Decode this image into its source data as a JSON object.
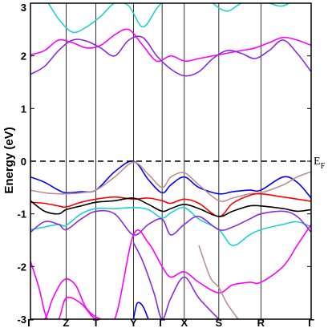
{
  "chart_data": {
    "type": "line",
    "ylabel": "Energy (eV)",
    "ylim": [
      -3,
      3
    ],
    "yticks": [
      -3,
      -2,
      -1,
      0,
      1,
      2,
      3
    ],
    "ytick_labels": [
      "-3",
      "-2",
      "-1",
      "0",
      "1",
      "2",
      "3"
    ],
    "kpath_labels": [
      "Γ",
      "Z",
      "T",
      "Y",
      "Γ",
      "X",
      "S",
      "R",
      "Γ"
    ],
    "kpath_positions": [
      0,
      0.127,
      0.233,
      0.367,
      0.469,
      0.548,
      0.671,
      0.821,
      1.0
    ],
    "fermi_level": 0,
    "fermi_label_main": "E",
    "fermi_label_sub": "F",
    "grid": false,
    "series": [
      {
        "color": "#ff00ff",
        "x": [
          0,
          0.05,
          0.1,
          0.15,
          0.2,
          0.25,
          0.3,
          0.35,
          0.4,
          0.45,
          0.5,
          0.55,
          0.6,
          0.65,
          0.7,
          0.75,
          0.8,
          0.85,
          0.9,
          0.95,
          1.0
        ],
        "y": [
          2.02,
          2.1,
          2.3,
          2.25,
          2.15,
          2.2,
          2.4,
          2.5,
          2.2,
          1.9,
          2.0,
          1.9,
          1.95,
          2.0,
          2.05,
          2.1,
          2.15,
          2.25,
          2.35,
          2.3,
          2.2
        ]
      },
      {
        "color": "#8a2be2",
        "x": [
          0,
          0.05,
          0.1,
          0.15,
          0.2,
          0.25,
          0.3,
          0.35,
          0.4,
          0.45,
          0.5,
          0.55,
          0.6,
          0.65,
          0.7,
          0.75,
          0.8,
          0.85,
          0.9,
          0.95,
          1.0
        ],
        "y": [
          1.65,
          1.8,
          2.1,
          2.3,
          2.28,
          2.15,
          2.0,
          2.3,
          2.35,
          2.0,
          1.75,
          1.62,
          1.7,
          1.95,
          2.1,
          2.05,
          1.95,
          2.1,
          2.3,
          2.05,
          1.7
        ]
      },
      {
        "color": "#20d0d0",
        "x": [
          0,
          0.05,
          0.1,
          0.15,
          0.2,
          0.25,
          0.3,
          0.35,
          0.4,
          0.45,
          0.5,
          0.55,
          0.6,
          0.65,
          0.7,
          0.75,
          0.8,
          0.85,
          0.9,
          0.95,
          1.0
        ],
        "y": [
          3.3,
          3.1,
          2.7,
          2.45,
          2.55,
          2.75,
          3.0,
          2.95,
          2.55,
          2.9,
          3.2,
          3.4,
          3.3,
          3.0,
          2.85,
          3.0,
          3.1,
          3.0,
          2.95,
          3.1,
          3.3
        ]
      },
      {
        "color": "#0000ff",
        "x": [
          0,
          0.05,
          0.1,
          0.127,
          0.18,
          0.233,
          0.3,
          0.367,
          0.42,
          0.469,
          0.5,
          0.548,
          0.6,
          0.671,
          0.72,
          0.78,
          0.821,
          0.9,
          0.95,
          1.0
        ],
        "y": [
          -0.3,
          -0.4,
          -0.55,
          -0.6,
          -0.58,
          -0.55,
          -0.2,
          0.0,
          -0.35,
          -0.6,
          -0.45,
          -0.3,
          -0.5,
          -0.62,
          -0.58,
          -0.55,
          -0.55,
          -0.3,
          -0.4,
          -0.7
        ]
      },
      {
        "color": "#bc8f8f",
        "x": [
          0,
          0.05,
          0.1,
          0.127,
          0.18,
          0.233,
          0.3,
          0.367,
          0.42,
          0.469,
          0.5,
          0.548,
          0.6,
          0.671,
          0.72,
          0.78,
          0.821,
          0.9,
          0.95,
          1.0
        ],
        "y": [
          -0.55,
          -0.6,
          -0.62,
          -0.62,
          -0.6,
          -0.55,
          -0.3,
          -0.02,
          -0.25,
          -0.5,
          -0.3,
          -0.22,
          -0.45,
          -0.75,
          -0.7,
          -0.62,
          -0.6,
          -0.45,
          -0.3,
          -0.2
        ]
      },
      {
        "color": "#ff0000",
        "x": [
          0,
          0.05,
          0.1,
          0.127,
          0.18,
          0.233,
          0.3,
          0.367,
          0.42,
          0.469,
          0.5,
          0.548,
          0.6,
          0.671,
          0.72,
          0.78,
          0.821,
          0.9,
          0.95,
          1.0
        ],
        "y": [
          -0.78,
          -0.8,
          -0.85,
          -0.87,
          -0.78,
          -0.72,
          -0.68,
          -0.72,
          -0.7,
          -0.75,
          -0.8,
          -0.72,
          -0.8,
          -1.05,
          -0.8,
          -0.65,
          -0.62,
          -0.68,
          -0.72,
          -0.76
        ]
      },
      {
        "color": "#000000",
        "x": [
          0,
          0.05,
          0.1,
          0.127,
          0.18,
          0.233,
          0.3,
          0.367,
          0.42,
          0.469,
          0.5,
          0.548,
          0.6,
          0.671,
          0.72,
          0.78,
          0.821,
          0.9,
          0.95,
          1.0
        ],
        "y": [
          -0.75,
          -0.95,
          -1.0,
          -0.92,
          -0.85,
          -0.78,
          -0.75,
          -0.7,
          -0.82,
          -0.95,
          -0.9,
          -0.82,
          -0.9,
          -1.05,
          -0.95,
          -0.85,
          -0.85,
          -0.9,
          -0.95,
          -0.92
        ]
      },
      {
        "color": "#20d0d0",
        "x": [
          0,
          0.05,
          0.1,
          0.127,
          0.18,
          0.233,
          0.3,
          0.367,
          0.42,
          0.469,
          0.5,
          0.548,
          0.6,
          0.671,
          0.72,
          0.78,
          0.821,
          0.9,
          0.95,
          1.0
        ],
        "y": [
          -1.3,
          -1.25,
          -1.2,
          -1.22,
          -1.0,
          -0.9,
          -0.9,
          -0.88,
          -0.92,
          -1.08,
          -0.98,
          -0.88,
          -1.1,
          -1.3,
          -1.6,
          -1.4,
          -1.3,
          -1.2,
          -1.15,
          -1.25
        ]
      },
      {
        "color": "#8a2be2",
        "x": [
          0,
          0.05,
          0.1,
          0.127,
          0.18,
          0.233,
          0.3,
          0.367,
          0.42,
          0.469,
          0.5,
          0.548,
          0.6,
          0.671,
          0.72,
          0.78,
          0.821,
          0.9,
          0.95,
          1.0
        ],
        "y": [
          -1.35,
          -1.15,
          -1.2,
          -1.3,
          -1.1,
          -0.95,
          -1.0,
          -1.4,
          -1.2,
          -1.1,
          -1.4,
          -1.2,
          -1.05,
          -1.3,
          -1.25,
          -1.1,
          -1.0,
          -0.95,
          -1.05,
          -1.35
        ]
      },
      {
        "color": "#ff00ff",
        "x": [
          0,
          0.03,
          0.06,
          0.1,
          0.127,
          0.18,
          0.233,
          0.3,
          0.367,
          0.42,
          0.469,
          0.5,
          0.548,
          0.6,
          0.671,
          0.72,
          0.78,
          0.821,
          0.9,
          0.95,
          1.0
        ],
        "y": [
          -1.9,
          -2.4,
          -3.0,
          -3.0,
          -2.6,
          -2.7,
          -3.0,
          -3.0,
          -1.4,
          -1.55,
          -2.0,
          -2.2,
          -2.1,
          -2.3,
          -2.5,
          -2.35,
          -2.3,
          -2.3,
          -2.0,
          -1.6,
          -1.2
        ]
      },
      {
        "color": "#ff00ff",
        "x": [
          0,
          0.05,
          0.08,
          0.12,
          0.16,
          0.2,
          0.25,
          0.3
        ],
        "y": [
          -3.0,
          -3.0,
          -2.6,
          -2.25,
          -2.35,
          -2.8,
          -3.0,
          -3.0
        ]
      },
      {
        "color": "#8a2be2",
        "x": [
          0.367,
          0.4,
          0.44,
          0.469,
          0.5,
          0.548,
          0.6,
          0.671
        ],
        "y": [
          -1.55,
          -1.9,
          -2.5,
          -3.0,
          -2.6,
          -2.2,
          -2.6,
          -3.0
        ]
      },
      {
        "color": "#bc8f8f",
        "x": [
          0.6,
          0.64,
          0.671,
          0.7,
          0.74
        ],
        "y": [
          -1.6,
          -2.2,
          -2.4,
          -2.7,
          -3.0
        ]
      },
      {
        "color": "#0000ff",
        "x": [
          0.367,
          0.38,
          0.4,
          0.42
        ],
        "y": [
          -3.0,
          -2.7,
          -2.75,
          -3.0
        ]
      }
    ]
  }
}
